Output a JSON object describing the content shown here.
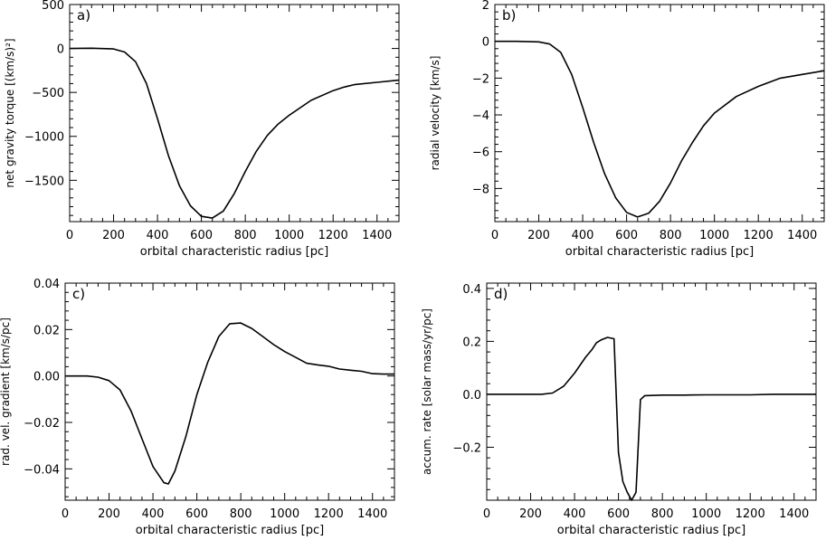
{
  "chart_data": [
    {
      "type": "line",
      "panel_label": "a)",
      "xlabel": "orbital characteristic radius [pc]",
      "ylabel": "net gravity torque [(km/s)²]",
      "xlim": [
        0,
        1500
      ],
      "ylim": [
        -1970,
        500
      ],
      "xticks": [
        0,
        200,
        400,
        600,
        800,
        1000,
        1200,
        1400
      ],
      "yticks": [
        500,
        0,
        -500,
        -1000,
        -1500
      ],
      "grid": false,
      "series": [
        {
          "x": [
            0,
            100,
            200,
            250,
            300,
            350,
            400,
            450,
            500,
            550,
            600,
            650,
            700,
            750,
            800,
            850,
            900,
            950,
            1000,
            1100,
            1200,
            1250,
            1300,
            1400,
            1500
          ],
          "y": [
            0,
            3,
            -5,
            -40,
            -150,
            -400,
            -800,
            -1220,
            -1560,
            -1790,
            -1910,
            -1930,
            -1850,
            -1650,
            -1400,
            -1170,
            -990,
            -860,
            -760,
            -590,
            -480,
            -440,
            -410,
            -385,
            -360
          ]
        }
      ]
    },
    {
      "type": "line",
      "panel_label": "b)",
      "xlabel": "orbital characteristic radius [pc]",
      "ylabel": "radial velocity [km/s]",
      "xlim": [
        0,
        1500
      ],
      "ylim": [
        -9.8,
        2
      ],
      "xticks": [
        0,
        200,
        400,
        600,
        800,
        1000,
        1200,
        1400
      ],
      "yticks": [
        2,
        0,
        -2,
        -4,
        -6,
        -8
      ],
      "grid": false,
      "series": [
        {
          "x": [
            0,
            100,
            200,
            250,
            300,
            350,
            400,
            450,
            500,
            550,
            600,
            650,
            700,
            750,
            800,
            850,
            900,
            950,
            1000,
            1100,
            1200,
            1300,
            1400,
            1500
          ],
          "y": [
            0,
            0,
            -0.03,
            -0.15,
            -0.6,
            -1.8,
            -3.6,
            -5.5,
            -7.2,
            -8.5,
            -9.3,
            -9.55,
            -9.35,
            -8.7,
            -7.7,
            -6.5,
            -5.5,
            -4.6,
            -3.9,
            -3.0,
            -2.45,
            -2.0,
            -1.8,
            -1.6
          ]
        }
      ]
    },
    {
      "type": "line",
      "panel_label": "c)",
      "xlabel": "orbital characteristic radius [pc]",
      "ylabel": "rad. vel. gradient [km/s/pc]",
      "xlim": [
        0,
        1500
      ],
      "ylim": [
        -0.0535,
        0.04
      ],
      "xticks": [
        0,
        200,
        400,
        600,
        800,
        1000,
        1200,
        1400
      ],
      "yticks": [
        0.04,
        0.02,
        0.0,
        -0.02,
        -0.04
      ],
      "grid": false,
      "series": [
        {
          "x": [
            0,
            50,
            100,
            150,
            200,
            250,
            300,
            350,
            400,
            450,
            470,
            500,
            550,
            600,
            650,
            700,
            750,
            800,
            850,
            900,
            950,
            1000,
            1050,
            1100,
            1150,
            1200,
            1250,
            1300,
            1350,
            1400,
            1450,
            1500
          ],
          "y": [
            0.0,
            0.0,
            0.0,
            -0.0005,
            -0.002,
            -0.006,
            -0.015,
            -0.027,
            -0.039,
            -0.046,
            -0.0465,
            -0.041,
            -0.026,
            -0.008,
            0.006,
            0.017,
            0.0225,
            0.0228,
            0.0205,
            0.017,
            0.0135,
            0.0105,
            0.008,
            0.0055,
            0.0048,
            0.0042,
            0.003,
            0.0025,
            0.002,
            0.001,
            0.0008,
            0.0008
          ]
        }
      ]
    },
    {
      "type": "line",
      "panel_label": "d)",
      "xlabel": "orbital characteristic radius [pc]",
      "ylabel": "accum. rate [solar mass/yr/pc]",
      "xlim": [
        0,
        1500
      ],
      "ylim": [
        -0.4,
        0.42
      ],
      "xticks": [
        0,
        200,
        400,
        600,
        800,
        1000,
        1200,
        1400
      ],
      "yticks": [
        0.4,
        0.2,
        0.0,
        -0.2
      ],
      "grid": false,
      "series": [
        {
          "x": [
            0,
            200,
            250,
            300,
            350,
            400,
            450,
            480,
            500,
            520,
            550,
            580,
            600,
            620,
            640,
            660,
            680,
            700,
            720,
            800,
            900,
            1000,
            1100,
            1200,
            1300,
            1400,
            1500
          ],
          "y": [
            0.0,
            0.0,
            0.0,
            0.005,
            0.03,
            0.08,
            0.14,
            0.17,
            0.195,
            0.205,
            0.215,
            0.21,
            -0.22,
            -0.33,
            -0.37,
            -0.4,
            -0.37,
            -0.02,
            -0.005,
            -0.003,
            -0.003,
            -0.002,
            -0.002,
            -0.002,
            0.0,
            0.0,
            0.0
          ]
        }
      ]
    }
  ]
}
